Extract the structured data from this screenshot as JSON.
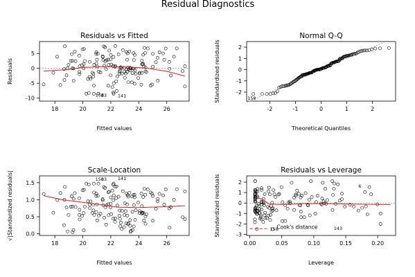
{
  "title": "Residual Diagnostics",
  "chart_data": [
    {
      "type": "scatter",
      "title": "Residuals vs Fitted",
      "xlabel": "Fitted values",
      "ylabel": "Residuals",
      "xlim": [
        16.9,
        27.6
      ],
      "ylim": [
        -11,
        9
      ],
      "xticks": [
        18,
        20,
        22,
        24,
        26
      ],
      "yticks": [
        -10,
        -5,
        0,
        5
      ],
      "hline": 0,
      "seed": 7,
      "n": 150,
      "x_range": [
        17.2,
        27.3
      ],
      "spread": 4.0,
      "labeled_points": [
        {
          "label": "158",
          "x": 21.2,
          "y": -9.0
        },
        {
          "label": "83",
          "x": 21.5,
          "y": -9.1
        },
        {
          "label": "141",
          "x": 22.8,
          "y": -9.3
        }
      ],
      "smooth": {
        "x": [
          17.2,
          19,
          20,
          21.5,
          23,
          24.5,
          26,
          27.3
        ],
        "y": [
          -0.9,
          -0.4,
          0.3,
          0.6,
          0.5,
          0.1,
          -1.0,
          -2.6
        ]
      }
    },
    {
      "type": "qq",
      "title": "Normal Q-Q",
      "xlabel": "Theoretical Quantiles",
      "ylabel": "Standardized residuals",
      "xlim": [
        -2.9,
        2.9
      ],
      "ylim": [
        -2.8,
        2.5
      ],
      "xticks": [
        -2,
        -1,
        0,
        1,
        2
      ],
      "yticks": [
        -2,
        -1,
        0,
        1,
        2
      ],
      "n": 150,
      "labeled_points": [
        {
          "label": "158",
          "x": -2.7,
          "y": -2.55
        }
      ]
    },
    {
      "type": "scatter",
      "title": "Scale-Location",
      "xlabel": "Fitted values",
      "ylabel": "√|Standardized residuals|",
      "xlim": [
        16.9,
        27.6
      ],
      "ylim": [
        -0.05,
        1.7
      ],
      "xticks": [
        18,
        20,
        22,
        24,
        26
      ],
      "yticks": [
        0.0,
        0.5,
        1.0,
        1.5
      ],
      "seed": 7,
      "n": 150,
      "labeled_points": [
        {
          "label": "158",
          "x": 21.2,
          "y": 1.6
        },
        {
          "label": "83",
          "x": 21.5,
          "y": 1.6
        },
        {
          "label": "141",
          "x": 22.8,
          "y": 1.62
        }
      ],
      "smooth": {
        "x": [
          17.2,
          18.5,
          20,
          21.5,
          22.5,
          24,
          25.5,
          27.3
        ],
        "y": [
          1.12,
          1.0,
          0.92,
          0.84,
          0.78,
          0.77,
          0.79,
          0.82
        ]
      }
    },
    {
      "type": "scatter",
      "title": "Residuals vs Leverage",
      "xlabel": "Leverage",
      "ylabel": "Standardized residuals",
      "xlim": [
        -0.005,
        0.228
      ],
      "ylim": [
        -3.1,
        2.6
      ],
      "xticks": [
        0.0,
        0.05,
        0.1,
        0.15,
        0.2
      ],
      "yticks": [
        -3,
        -2,
        -1,
        0,
        1,
        2
      ],
      "hline": 0,
      "seed": 11,
      "n": 150,
      "labeled_points": [
        {
          "label": "158",
          "x": 0.038,
          "y": -2.5
        },
        {
          "label": "6",
          "x": 0.172,
          "y": 1.6
        },
        {
          "label": "143",
          "x": 0.138,
          "y": -2.45
        }
      ],
      "legend": "Cook's distance",
      "smooth": {
        "x": [
          0.01,
          0.02,
          0.03,
          0.05,
          0.08,
          0.12,
          0.16,
          0.22
        ],
        "y": [
          0.55,
          0.35,
          -0.1,
          -0.15,
          -0.05,
          -0.05,
          -0.1,
          -0.15
        ]
      }
    }
  ]
}
